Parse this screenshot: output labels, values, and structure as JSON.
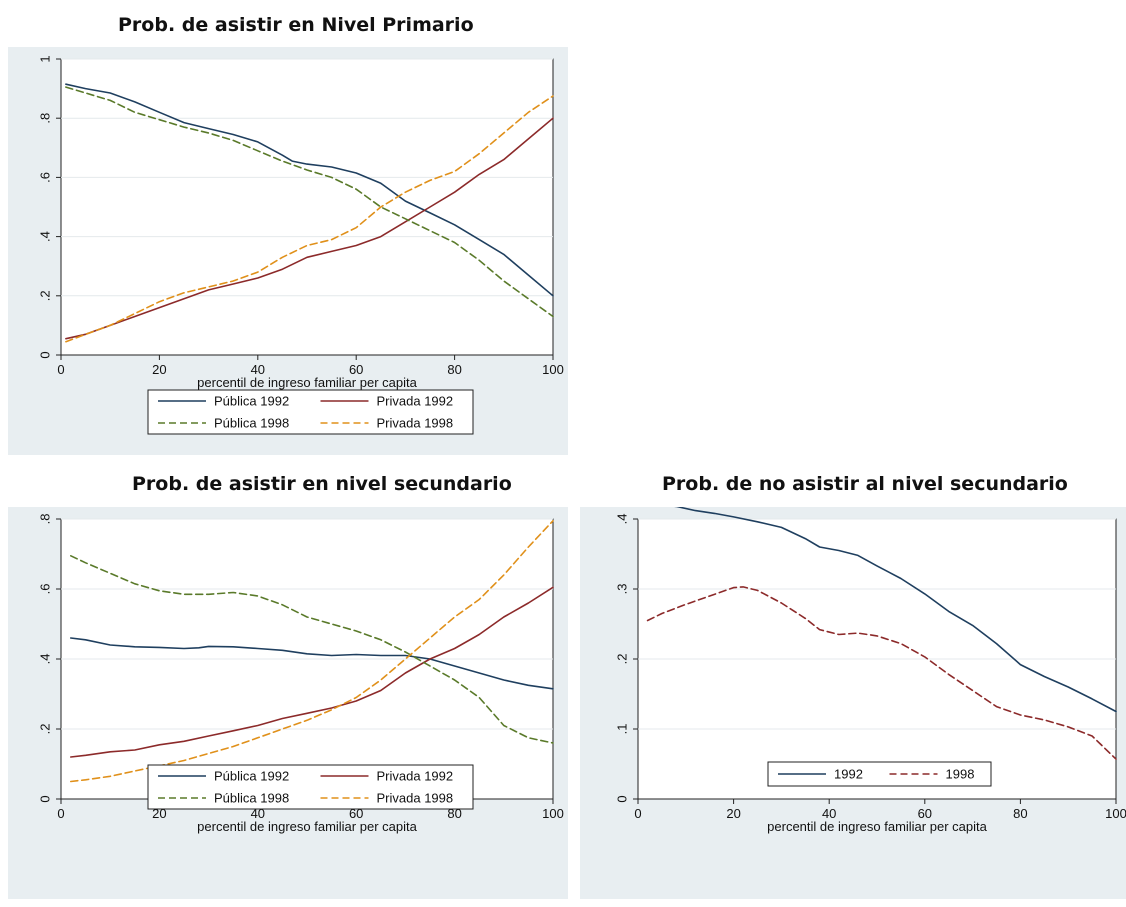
{
  "chart_data": [
    {
      "type": "line",
      "title": "Prob. de asistir en Nivel Primario",
      "xlabel": "percentil de ingreso familiar per capita",
      "ylabel": "",
      "xlim": [
        0,
        100
      ],
      "ylim": [
        0,
        1
      ],
      "xticks": [
        "0",
        "20",
        "40",
        "60",
        "80",
        "100"
      ],
      "yticks": [
        "0",
        ".2",
        ".4",
        ".6",
        ".8",
        "1"
      ],
      "grid": true,
      "legend_position": "bottom",
      "series": [
        {
          "name": "Pública 1992",
          "color": "#1f3f5f",
          "dash": "solid",
          "x": [
            1,
            5,
            10,
            15,
            20,
            25,
            30,
            35,
            40,
            45,
            47,
            50,
            55,
            60,
            65,
            70,
            75,
            80,
            85,
            90,
            95,
            100
          ],
          "y": [
            0.915,
            0.9,
            0.885,
            0.855,
            0.82,
            0.785,
            0.765,
            0.745,
            0.72,
            0.675,
            0.655,
            0.645,
            0.635,
            0.615,
            0.58,
            0.52,
            0.48,
            0.44,
            0.39,
            0.34,
            0.27,
            0.2
          ]
        },
        {
          "name": "Privada 1992",
          "color": "#8c2a2a",
          "dash": "solid",
          "x": [
            1,
            5,
            10,
            15,
            20,
            25,
            30,
            35,
            40,
            45,
            50,
            55,
            60,
            65,
            70,
            75,
            80,
            85,
            90,
            95,
            100
          ],
          "y": [
            0.055,
            0.07,
            0.1,
            0.13,
            0.16,
            0.19,
            0.22,
            0.24,
            0.26,
            0.29,
            0.33,
            0.35,
            0.37,
            0.4,
            0.45,
            0.5,
            0.55,
            0.61,
            0.66,
            0.73,
            0.8
          ]
        },
        {
          "name": "Pública 1998",
          "color": "#5a7a2a",
          "dash": "dashed",
          "x": [
            1,
            5,
            10,
            15,
            20,
            25,
            30,
            35,
            40,
            45,
            50,
            55,
            60,
            65,
            70,
            75,
            80,
            85,
            90,
            95,
            100
          ],
          "y": [
            0.905,
            0.885,
            0.86,
            0.82,
            0.795,
            0.77,
            0.75,
            0.725,
            0.69,
            0.655,
            0.625,
            0.6,
            0.56,
            0.5,
            0.46,
            0.42,
            0.38,
            0.32,
            0.25,
            0.19,
            0.13
          ]
        },
        {
          "name": "Privada 1998",
          "color": "#e0901a",
          "dash": "dashed",
          "x": [
            1,
            5,
            10,
            15,
            20,
            25,
            30,
            35,
            40,
            45,
            50,
            55,
            60,
            65,
            70,
            75,
            80,
            85,
            90,
            95,
            100
          ],
          "y": [
            0.045,
            0.07,
            0.1,
            0.14,
            0.18,
            0.21,
            0.23,
            0.25,
            0.28,
            0.33,
            0.37,
            0.39,
            0.43,
            0.5,
            0.55,
            0.59,
            0.62,
            0.68,
            0.75,
            0.82,
            0.875
          ]
        }
      ]
    },
    {
      "type": "line",
      "title": "Prob. de asistir en nivel secundario",
      "xlabel": "percentil de ingreso familiar per capita",
      "ylabel": "",
      "xlim": [
        0,
        100
      ],
      "ylim": [
        0,
        0.8
      ],
      "xticks": [
        "0",
        "20",
        "40",
        "60",
        "80",
        "100"
      ],
      "yticks": [
        "0",
        ".2",
        ".4",
        ".6",
        ".8"
      ],
      "grid": true,
      "legend_position": "bottom",
      "series": [
        {
          "name": "Pública 1992",
          "color": "#1f3f5f",
          "dash": "solid",
          "x": [
            2,
            5,
            10,
            15,
            20,
            25,
            28,
            30,
            35,
            40,
            45,
            50,
            55,
            60,
            65,
            70,
            75,
            80,
            85,
            90,
            95,
            100
          ],
          "y": [
            0.46,
            0.455,
            0.44,
            0.435,
            0.433,
            0.43,
            0.432,
            0.436,
            0.435,
            0.43,
            0.425,
            0.415,
            0.41,
            0.413,
            0.41,
            0.41,
            0.4,
            0.38,
            0.36,
            0.34,
            0.325,
            0.315
          ]
        },
        {
          "name": "Privada 1992",
          "color": "#8c2a2a",
          "dash": "solid",
          "x": [
            2,
            5,
            10,
            15,
            20,
            25,
            30,
            35,
            40,
            45,
            50,
            55,
            60,
            65,
            70,
            75,
            80,
            85,
            90,
            95,
            100
          ],
          "y": [
            0.12,
            0.125,
            0.135,
            0.14,
            0.155,
            0.165,
            0.18,
            0.195,
            0.21,
            0.23,
            0.245,
            0.26,
            0.28,
            0.31,
            0.36,
            0.4,
            0.43,
            0.47,
            0.52,
            0.56,
            0.605
          ]
        },
        {
          "name": "Pública 1998",
          "color": "#5a7a2a",
          "dash": "dashed",
          "x": [
            2,
            5,
            10,
            15,
            20,
            25,
            30,
            35,
            40,
            45,
            50,
            55,
            60,
            65,
            70,
            75,
            80,
            85,
            90,
            95,
            100
          ],
          "y": [
            0.695,
            0.675,
            0.645,
            0.615,
            0.595,
            0.585,
            0.585,
            0.59,
            0.58,
            0.555,
            0.52,
            0.5,
            0.48,
            0.455,
            0.42,
            0.38,
            0.34,
            0.29,
            0.21,
            0.175,
            0.16
          ]
        },
        {
          "name": "Privada 1998",
          "color": "#e0901a",
          "dash": "dashed",
          "x": [
            2,
            5,
            10,
            15,
            20,
            25,
            30,
            35,
            40,
            45,
            50,
            55,
            60,
            65,
            70,
            75,
            80,
            85,
            90,
            95,
            100
          ],
          "y": [
            0.05,
            0.055,
            0.065,
            0.08,
            0.095,
            0.11,
            0.13,
            0.15,
            0.175,
            0.2,
            0.225,
            0.255,
            0.29,
            0.34,
            0.4,
            0.46,
            0.52,
            0.57,
            0.64,
            0.72,
            0.795
          ]
        }
      ]
    },
    {
      "type": "line",
      "title": "Prob. de no asistir al nivel secundario",
      "xlabel": "percentil de ingreso familiar per capita",
      "ylabel": "",
      "xlim": [
        0,
        100
      ],
      "ylim": [
        0,
        0.4
      ],
      "xticks": [
        "0",
        "20",
        "40",
        "60",
        "80",
        "100"
      ],
      "yticks": [
        "0",
        ".1",
        ".2",
        ".3",
        ".4"
      ],
      "grid": true,
      "legend_position": "bottom",
      "series": [
        {
          "name": "1992",
          "color": "#1f3f5f",
          "dash": "solid",
          "x": [
            2,
            5,
            8,
            12,
            16,
            20,
            25,
            30,
            35,
            38,
            42,
            46,
            50,
            55,
            60,
            65,
            70,
            75,
            80,
            85,
            90,
            95,
            100
          ],
          "y": [
            0.42,
            0.42,
            0.418,
            0.412,
            0.408,
            0.403,
            0.396,
            0.388,
            0.372,
            0.36,
            0.355,
            0.348,
            0.333,
            0.315,
            0.293,
            0.268,
            0.248,
            0.222,
            0.192,
            0.175,
            0.16,
            0.143,
            0.125
          ]
        },
        {
          "name": "1998",
          "color": "#8c2a2a",
          "dash": "dashed",
          "x": [
            2,
            5,
            10,
            15,
            20,
            22,
            25,
            30,
            35,
            38,
            42,
            46,
            50,
            55,
            60,
            65,
            70,
            75,
            80,
            85,
            90,
            95,
            100
          ],
          "y": [
            0.255,
            0.265,
            0.278,
            0.29,
            0.302,
            0.303,
            0.298,
            0.28,
            0.258,
            0.242,
            0.235,
            0.237,
            0.233,
            0.222,
            0.203,
            0.178,
            0.155,
            0.132,
            0.12,
            0.113,
            0.103,
            0.09,
            0.057
          ]
        }
      ]
    }
  ]
}
